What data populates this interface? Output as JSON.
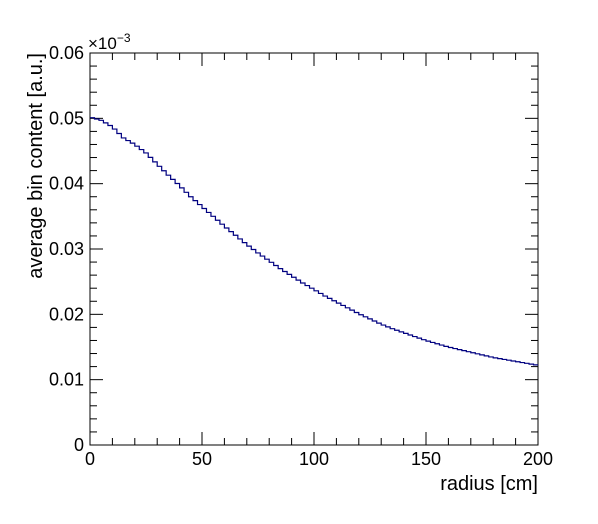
{
  "chart_data": {
    "type": "line",
    "style": "step",
    "title": "",
    "xlabel": "radius [cm]",
    "ylabel": "average bin content [a.u.]",
    "xlim": [
      0,
      200
    ],
    "ylim": [
      0,
      0.06
    ],
    "x_ticks": [
      "0",
      "50",
      "100",
      "150",
      "200"
    ],
    "y_ticks": [
      "0",
      "0.01",
      "0.02",
      "0.03",
      "0.04",
      "0.05",
      "0.06"
    ],
    "y_multiplier": {
      "base": "×10",
      "exponent": "−3"
    },
    "grid": false,
    "legend": "none",
    "series_color": "#000080",
    "series": [
      {
        "name": "",
        "x": [
          0,
          5,
          10,
          15,
          20,
          25,
          30,
          35,
          40,
          45,
          50,
          55,
          60,
          65,
          70,
          75,
          80,
          85,
          90,
          95,
          100,
          105,
          110,
          115,
          120,
          125,
          130,
          135,
          140,
          145,
          150,
          155,
          160,
          165,
          170,
          175,
          180,
          185,
          190,
          195,
          200
        ],
        "values": [
          0.0502,
          0.0497,
          0.0487,
          0.047,
          0.046,
          0.0447,
          0.043,
          0.0413,
          0.0397,
          0.038,
          0.0365,
          0.035,
          0.0335,
          0.0321,
          0.0307,
          0.0294,
          0.0282,
          0.027,
          0.0259,
          0.0248,
          0.0238,
          0.0228,
          0.0219,
          0.021,
          0.0201,
          0.0193,
          0.0185,
          0.0178,
          0.0172,
          0.0166,
          0.016,
          0.0155,
          0.015,
          0.0146,
          0.0142,
          0.0138,
          0.0134,
          0.0131,
          0.0128,
          0.0125,
          0.0122
        ]
      }
    ]
  }
}
